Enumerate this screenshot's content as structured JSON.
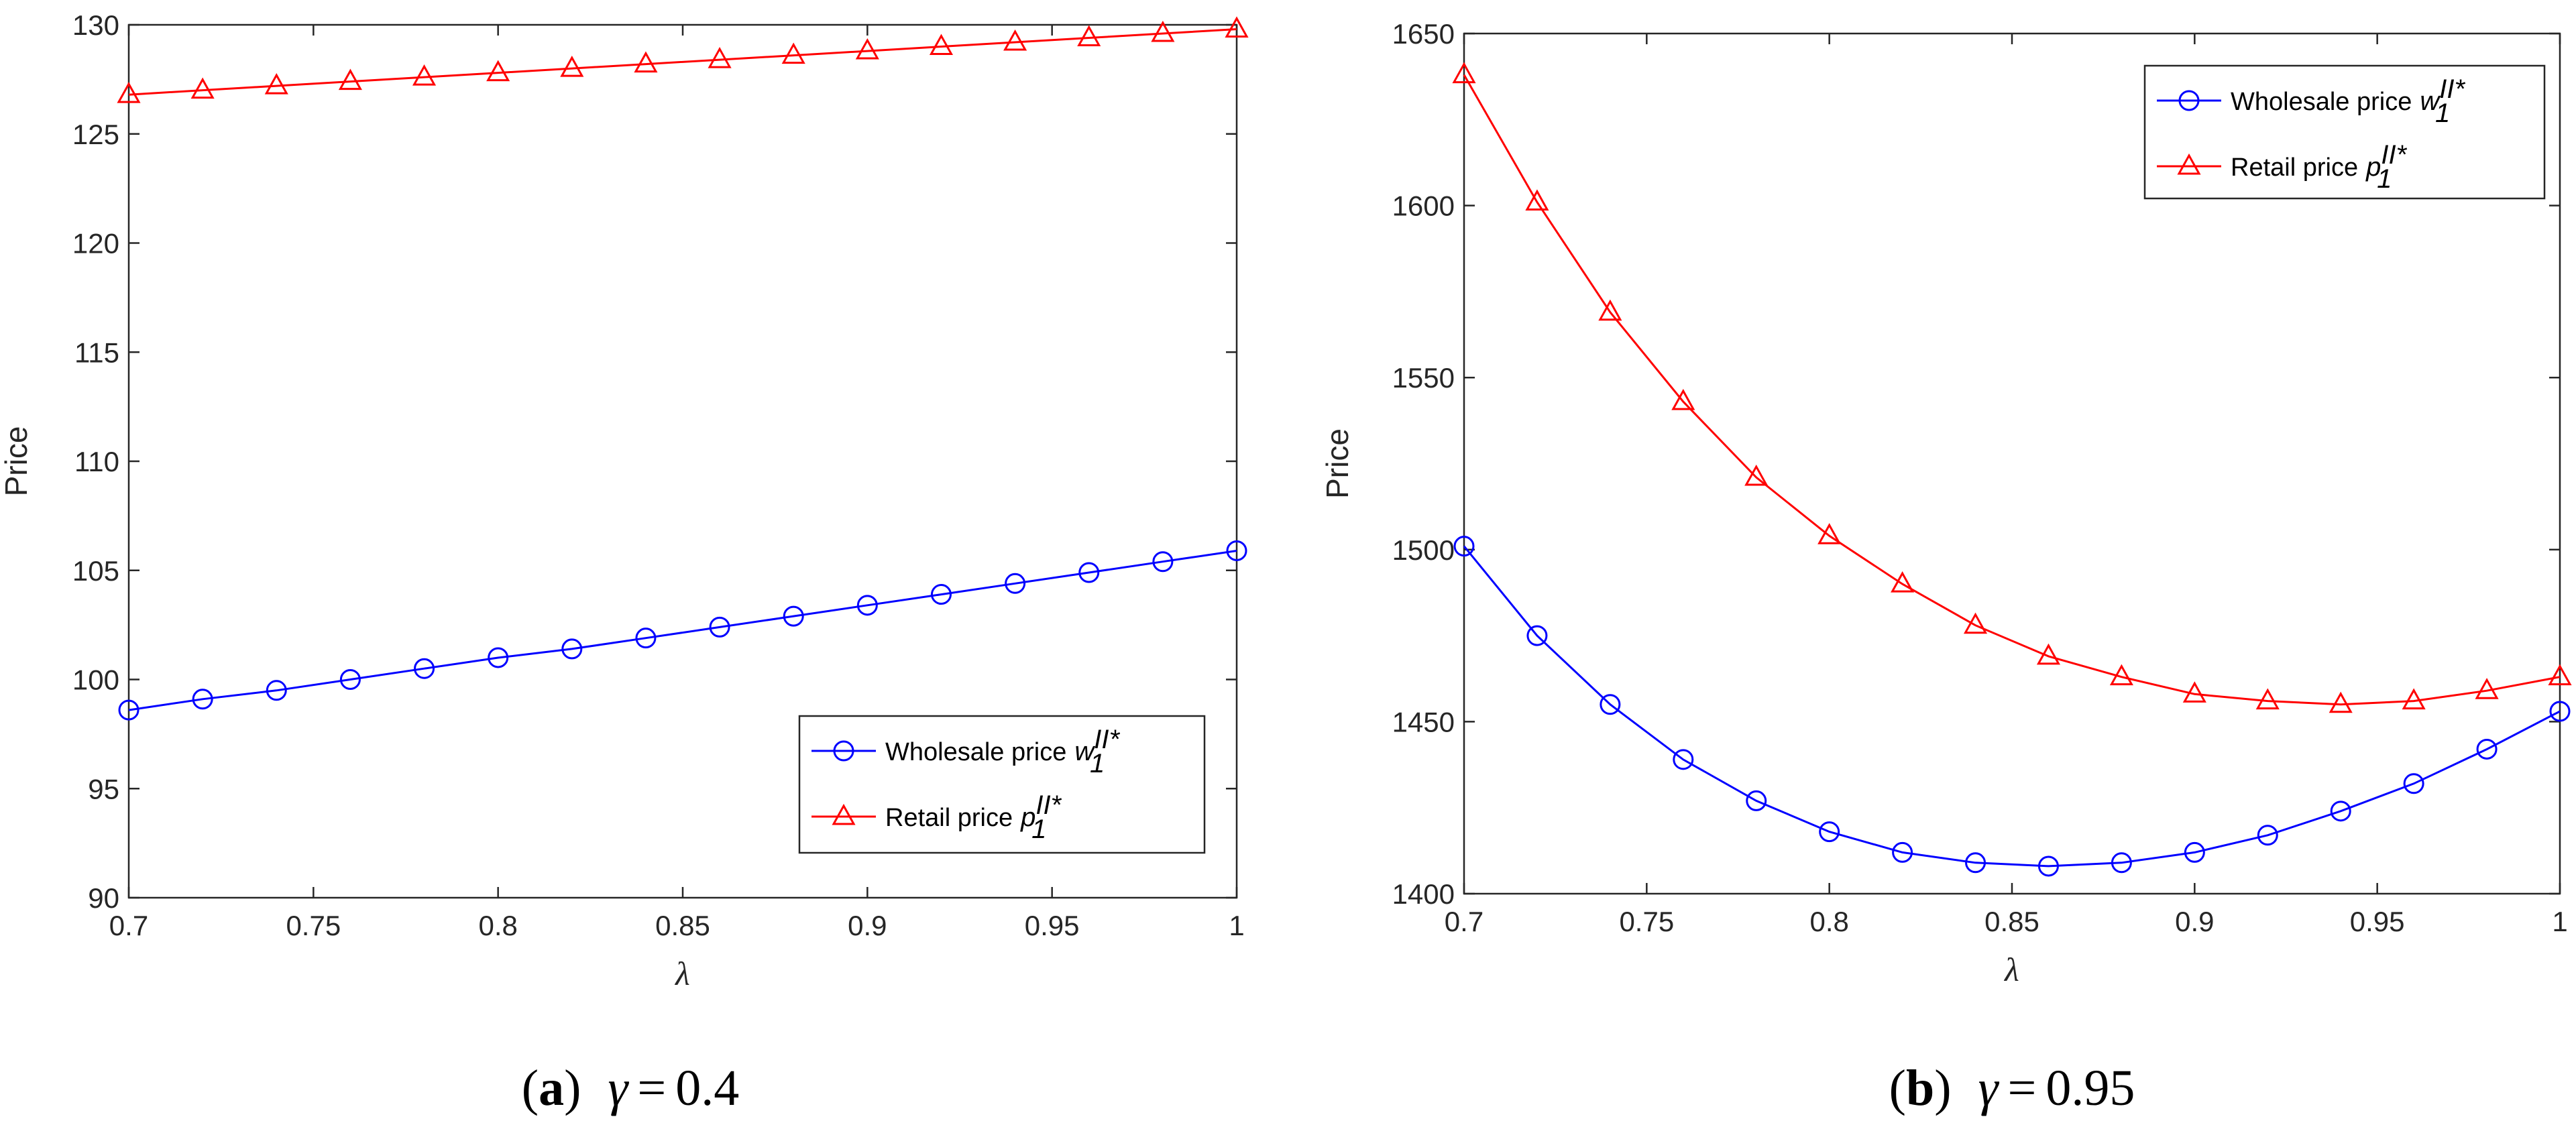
{
  "chart_data": [
    {
      "type": "line",
      "panel": "a",
      "caption": {
        "paren_open": "(",
        "letter": "a",
        "paren_close": ")",
        "symbol": "γ",
        "eq": "=",
        "value": "0.4"
      },
      "xlabel": "λ",
      "ylabel": "Price",
      "xlim": [
        0.7,
        1.0
      ],
      "ylim": [
        90,
        130
      ],
      "xticks": [
        0.7,
        0.75,
        0.8,
        0.85,
        0.9,
        0.95,
        1.0
      ],
      "xtick_labels": [
        "0.7",
        "0.75",
        "0.8",
        "0.85",
        "0.9",
        "0.95",
        "1"
      ],
      "yticks": [
        90,
        95,
        100,
        105,
        110,
        115,
        120,
        125,
        130
      ],
      "ytick_labels": [
        "90",
        "95",
        "100",
        "105",
        "110",
        "115",
        "120",
        "125",
        "130"
      ],
      "legend_position": "lower-right",
      "x": [
        0.7,
        0.72,
        0.74,
        0.76,
        0.78,
        0.8,
        0.82,
        0.84,
        0.86,
        0.88,
        0.9,
        0.92,
        0.94,
        0.96,
        0.98,
        1.0
      ],
      "series": [
        {
          "name": "Wholesale price",
          "symbol": "w",
          "sub": "1",
          "sup": "II*",
          "color": "#0000ff",
          "marker": "circle",
          "values": [
            98.6,
            99.1,
            99.5,
            100.0,
            100.5,
            101.0,
            101.4,
            101.9,
            102.4,
            102.9,
            103.4,
            103.9,
            104.4,
            104.9,
            105.4,
            105.9
          ]
        },
        {
          "name": "Retail price",
          "symbol": "p",
          "sub": "1",
          "sup": "II*",
          "color": "#ff0000",
          "marker": "triangle",
          "values": [
            126.8,
            127.0,
            127.2,
            127.4,
            127.6,
            127.8,
            128.0,
            128.2,
            128.4,
            128.6,
            128.8,
            129.0,
            129.2,
            129.4,
            129.6,
            129.8
          ]
        }
      ]
    },
    {
      "type": "line",
      "panel": "b",
      "caption": {
        "paren_open": "(",
        "letter": "b",
        "paren_close": ")",
        "symbol": "γ",
        "eq": "=",
        "value": "0.95"
      },
      "xlabel": "λ",
      "ylabel": "Price",
      "xlim": [
        0.7,
        1.0
      ],
      "ylim": [
        1400,
        1650
      ],
      "xticks": [
        0.7,
        0.75,
        0.8,
        0.85,
        0.9,
        0.95,
        1.0
      ],
      "xtick_labels": [
        "0.7",
        "0.75",
        "0.8",
        "0.85",
        "0.9",
        "0.95",
        "1"
      ],
      "yticks": [
        1400,
        1450,
        1500,
        1550,
        1600,
        1650
      ],
      "ytick_labels": [
        "1400",
        "1450",
        "1500",
        "1550",
        "1600",
        "1650"
      ],
      "legend_position": "top-right",
      "x": [
        0.7,
        0.72,
        0.74,
        0.76,
        0.78,
        0.8,
        0.82,
        0.84,
        0.86,
        0.88,
        0.9,
        0.92,
        0.94,
        0.96,
        0.98,
        1.0
      ],
      "series": [
        {
          "name": "Wholesale price",
          "symbol": "w",
          "sub": "1",
          "sup": "II*",
          "color": "#0000ff",
          "marker": "circle",
          "values": [
            1501,
            1475,
            1455,
            1439,
            1427,
            1418,
            1412,
            1409,
            1408,
            1409,
            1412,
            1417,
            1424,
            1432,
            1442,
            1453
          ]
        },
        {
          "name": "Retail price",
          "symbol": "p",
          "sub": "1",
          "sup": "II*",
          "color": "#ff0000",
          "marker": "triangle",
          "values": [
            1638,
            1601,
            1569,
            1543,
            1521,
            1504,
            1490,
            1478,
            1469,
            1463,
            1458,
            1456,
            1455,
            1456,
            1459,
            1463
          ]
        }
      ]
    }
  ]
}
